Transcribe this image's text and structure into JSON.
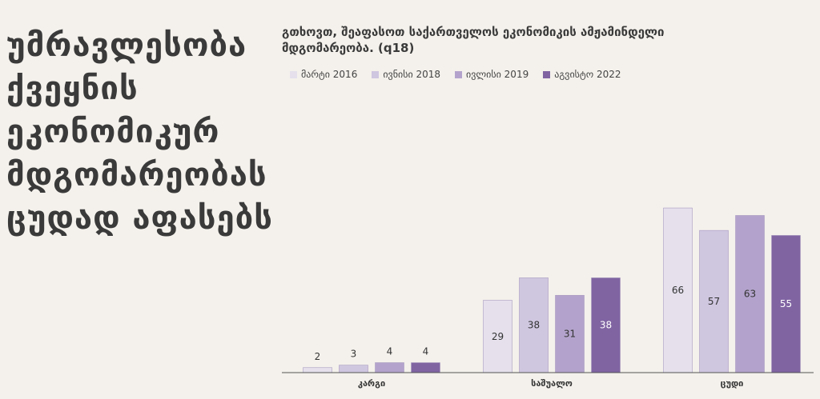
{
  "headline": [
    "უმრავლესობა",
    "ქვეყნის",
    "ეკონომიკურ",
    "მდგომარეობას",
    "ცუდად აფასებს"
  ],
  "chart_data": {
    "type": "bar",
    "title": "გთხოვთ, შეაფასოთ საქართველოს ეკონომიკის ამჟამინდელი მდგომარეობა. (q18)",
    "categories": [
      "კარგი",
      "საშუალო",
      "ცუდი"
    ],
    "series": [
      {
        "name": "მარტი 2016",
        "values": [
          2,
          29,
          66
        ],
        "color": "#e5e0ec"
      },
      {
        "name": "ივნისი 2018",
        "values": [
          3,
          38,
          57
        ],
        "color": "#cfc6e0"
      },
      {
        "name": "ივლისი 2019",
        "values": [
          4,
          31,
          63
        ],
        "color": "#b3a3cc"
      },
      {
        "name": "აგვისტო 2022",
        "values": [
          4,
          38,
          55
        ],
        "color": "#8064a2"
      }
    ],
    "ylim": [
      0,
      70
    ],
    "legend_position": "top",
    "grid": false
  }
}
